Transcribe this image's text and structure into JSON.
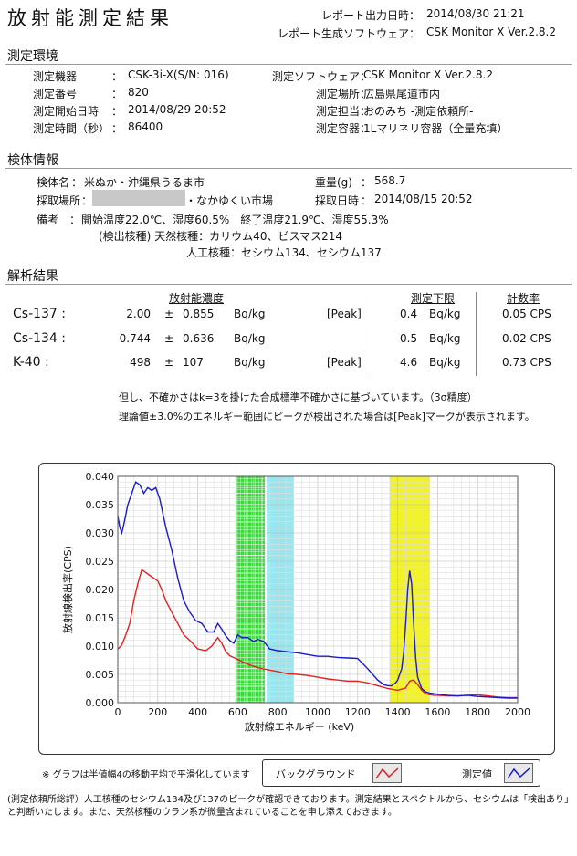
{
  "header": {
    "title": "放射能測定結果",
    "report_time_label": "レポート出力日時：",
    "report_time": "2014/08/30 21:21",
    "software_label": "レポート生成ソフトウェア：",
    "software": "CSK Monitor X Ver.2.8.2"
  },
  "env": {
    "heading": "測定環境",
    "device_label": "測定機器",
    "device": "CSK-3i-X(S/N: 016)",
    "number_label": "測定番号",
    "number": "820",
    "start_label": "測定開始日時",
    "start": "2014/08/29 20:52",
    "duration_label": "測定時間（秒）",
    "duration": "86400",
    "sw_label": "測定ソフトウェア：",
    "sw": "CSK Monitor X Ver.2.8.2",
    "place_label": "測定場所：",
    "place": "広島県尾道市内",
    "staff_label": "測定担当：",
    "staff": "おのみち -測定依頼所-",
    "container_label": "測定容器：",
    "container": "1Lマリネリ容器（全量充填）",
    "colon": "："
  },
  "sample": {
    "heading": "検体情報",
    "name_label": "検体名",
    "name": "米ぬか・沖縄県うるま市",
    "weight_label": "重量(g)",
    "weight": "568.7",
    "place_label": "採取場所",
    "place_suffix": "・なかゆくい市場",
    "date_label": "採取日時",
    "date": "2014/08/15 20:52",
    "note_label": "備考",
    "note_line1": "開始温度22.0℃、湿度60.5%　終了温度21.9℃、湿度55.3%",
    "note_line2": "(検出核種) 天然核種：カリウム40、ビスマス214",
    "note_line3": "人工核種：セシウム134、セシウム137"
  },
  "analysis": {
    "heading": "解析結果",
    "col_conc": "放射能濃度",
    "col_limit": "測定下限",
    "col_rate": "計数率",
    "rows": [
      {
        "nuclide": "Cs-137 :",
        "value": "2.00",
        "pm": "±",
        "err": "0.855",
        "unit": "Bq/kg",
        "peak": "[Peak]",
        "limit": "0.4",
        "limit_unit": "Bq/kg",
        "rate": "0.05 CPS"
      },
      {
        "nuclide": "Cs-134 :",
        "value": "0.744",
        "pm": "±",
        "err": "0.636",
        "unit": "Bq/kg",
        "peak": "",
        "limit": "0.5",
        "limit_unit": "Bq/kg",
        "rate": "0.02 CPS"
      },
      {
        "nuclide": "K-40 :",
        "value": "498",
        "pm": "±",
        "err": "107",
        "unit": "Bq/kg",
        "peak": "[Peak]",
        "limit": "4.6",
        "limit_unit": "Bq/kg",
        "rate": "0.73 CPS"
      }
    ],
    "note1": "但し、不確かさはk=3を掛けた合成標準不確かさに基づいています。（3σ精度）",
    "note2": "理論値±3.0%のエネルギー範囲にピークが検出された場合は[Peak]マークが表示されます。"
  },
  "chart_data": {
    "type": "line",
    "xlabel": "放射線エネルギー (keV)",
    "ylabel": "放射線検出率(CPS)",
    "xlim": [
      0,
      2000
    ],
    "ylim": [
      0,
      0.04
    ],
    "xticks": [
      "0",
      "200",
      "400",
      "600",
      "800",
      "1000",
      "1200",
      "1400",
      "1600",
      "1800",
      "2000"
    ],
    "yticks": [
      "0.000",
      "0.005",
      "0.010",
      "0.015",
      "0.020",
      "0.025",
      "0.030",
      "0.035",
      "0.040"
    ],
    "grid": true,
    "bands": [
      {
        "from": 590,
        "to": 735,
        "color": "#33dd33",
        "pattern": "hatched"
      },
      {
        "from": 745,
        "to": 880,
        "color": "#99e6ee",
        "pattern": "solid"
      },
      {
        "from": 1360,
        "to": 1560,
        "color": "#f2f22a",
        "pattern": "solid"
      }
    ],
    "series": [
      {
        "name": "測定値",
        "color": "#1a1acc",
        "x": [
          0,
          10,
          20,
          30,
          50,
          70,
          90,
          110,
          130,
          150,
          170,
          190,
          210,
          240,
          270,
          300,
          330,
          360,
          390,
          420,
          450,
          480,
          500,
          520,
          540,
          560,
          580,
          600,
          620,
          650,
          680,
          700,
          730,
          760,
          800,
          850,
          900,
          950,
          1000,
          1050,
          1100,
          1150,
          1200,
          1250,
          1300,
          1330,
          1350,
          1370,
          1390,
          1400,
          1420,
          1430,
          1440,
          1450,
          1460,
          1470,
          1480,
          1490,
          1500,
          1520,
          1540,
          1560,
          1580,
          1600,
          1650,
          1700,
          1750,
          1800,
          1850,
          1900,
          1950,
          2000
        ],
        "y": [
          0.033,
          0.031,
          0.03,
          0.0315,
          0.035,
          0.037,
          0.039,
          0.0385,
          0.037,
          0.038,
          0.0375,
          0.038,
          0.036,
          0.031,
          0.027,
          0.022,
          0.018,
          0.016,
          0.0145,
          0.014,
          0.0125,
          0.0125,
          0.014,
          0.013,
          0.0118,
          0.011,
          0.0105,
          0.012,
          0.0115,
          0.0115,
          0.0108,
          0.0112,
          0.0108,
          0.0095,
          0.0092,
          0.009,
          0.0088,
          0.0085,
          0.0082,
          0.0082,
          0.008,
          0.0079,
          0.0078,
          0.006,
          0.004,
          0.0032,
          0.003,
          0.003,
          0.0035,
          0.004,
          0.006,
          0.009,
          0.014,
          0.02,
          0.0233,
          0.021,
          0.014,
          0.008,
          0.0045,
          0.0025,
          0.0019,
          0.0017,
          0.0016,
          0.0015,
          0.0013,
          0.0012,
          0.0013,
          0.0011,
          0.001,
          0.0009,
          0.0008,
          0.0008
        ]
      },
      {
        "name": "バックグラウンド",
        "color": "#e02222",
        "x": [
          0,
          10,
          20,
          40,
          60,
          80,
          100,
          120,
          140,
          160,
          180,
          200,
          220,
          240,
          270,
          300,
          330,
          360,
          400,
          440,
          470,
          490,
          500,
          520,
          540,
          560,
          590,
          620,
          650,
          700,
          750,
          800,
          850,
          900,
          950,
          1000,
          1050,
          1100,
          1150,
          1200,
          1250,
          1300,
          1350,
          1400,
          1440,
          1460,
          1480,
          1500,
          1520,
          1540,
          1560,
          1580,
          1600,
          1650,
          1700,
          1750,
          1800,
          1850,
          1900,
          1950,
          2000
        ],
        "y": [
          0.0095,
          0.0098,
          0.0102,
          0.012,
          0.014,
          0.018,
          0.021,
          0.0235,
          0.023,
          0.0225,
          0.022,
          0.0215,
          0.02,
          0.018,
          0.016,
          0.014,
          0.012,
          0.011,
          0.0095,
          0.0092,
          0.01,
          0.011,
          0.0115,
          0.0105,
          0.009,
          0.0083,
          0.0078,
          0.0073,
          0.0068,
          0.0062,
          0.0058,
          0.0055,
          0.0051,
          0.005,
          0.0048,
          0.0045,
          0.0042,
          0.004,
          0.0038,
          0.0038,
          0.0035,
          0.003,
          0.0025,
          0.0022,
          0.0026,
          0.0038,
          0.004,
          0.0032,
          0.0022,
          0.0016,
          0.0014,
          0.0013,
          0.0013,
          0.0012,
          0.0012,
          0.0013,
          0.0014,
          0.0012,
          0.001,
          0.0009,
          0.0009
        ]
      }
    ]
  },
  "chart_footer": {
    "smoothing_note": "※ グラフは半値幅4の移動平均で平滑化しています",
    "legend_bg": "バックグラウンド",
    "legend_meas": "測定値"
  },
  "comment": {
    "line1": "(測定依頼所総評）人工核種のセシウム134及び137のピークが確認できております。測定結果とスペクトルから、セシウムは「検出あり」と判断いたします。また、天然核種のウラン系が微量含まれていることを申し添えておきます。"
  }
}
